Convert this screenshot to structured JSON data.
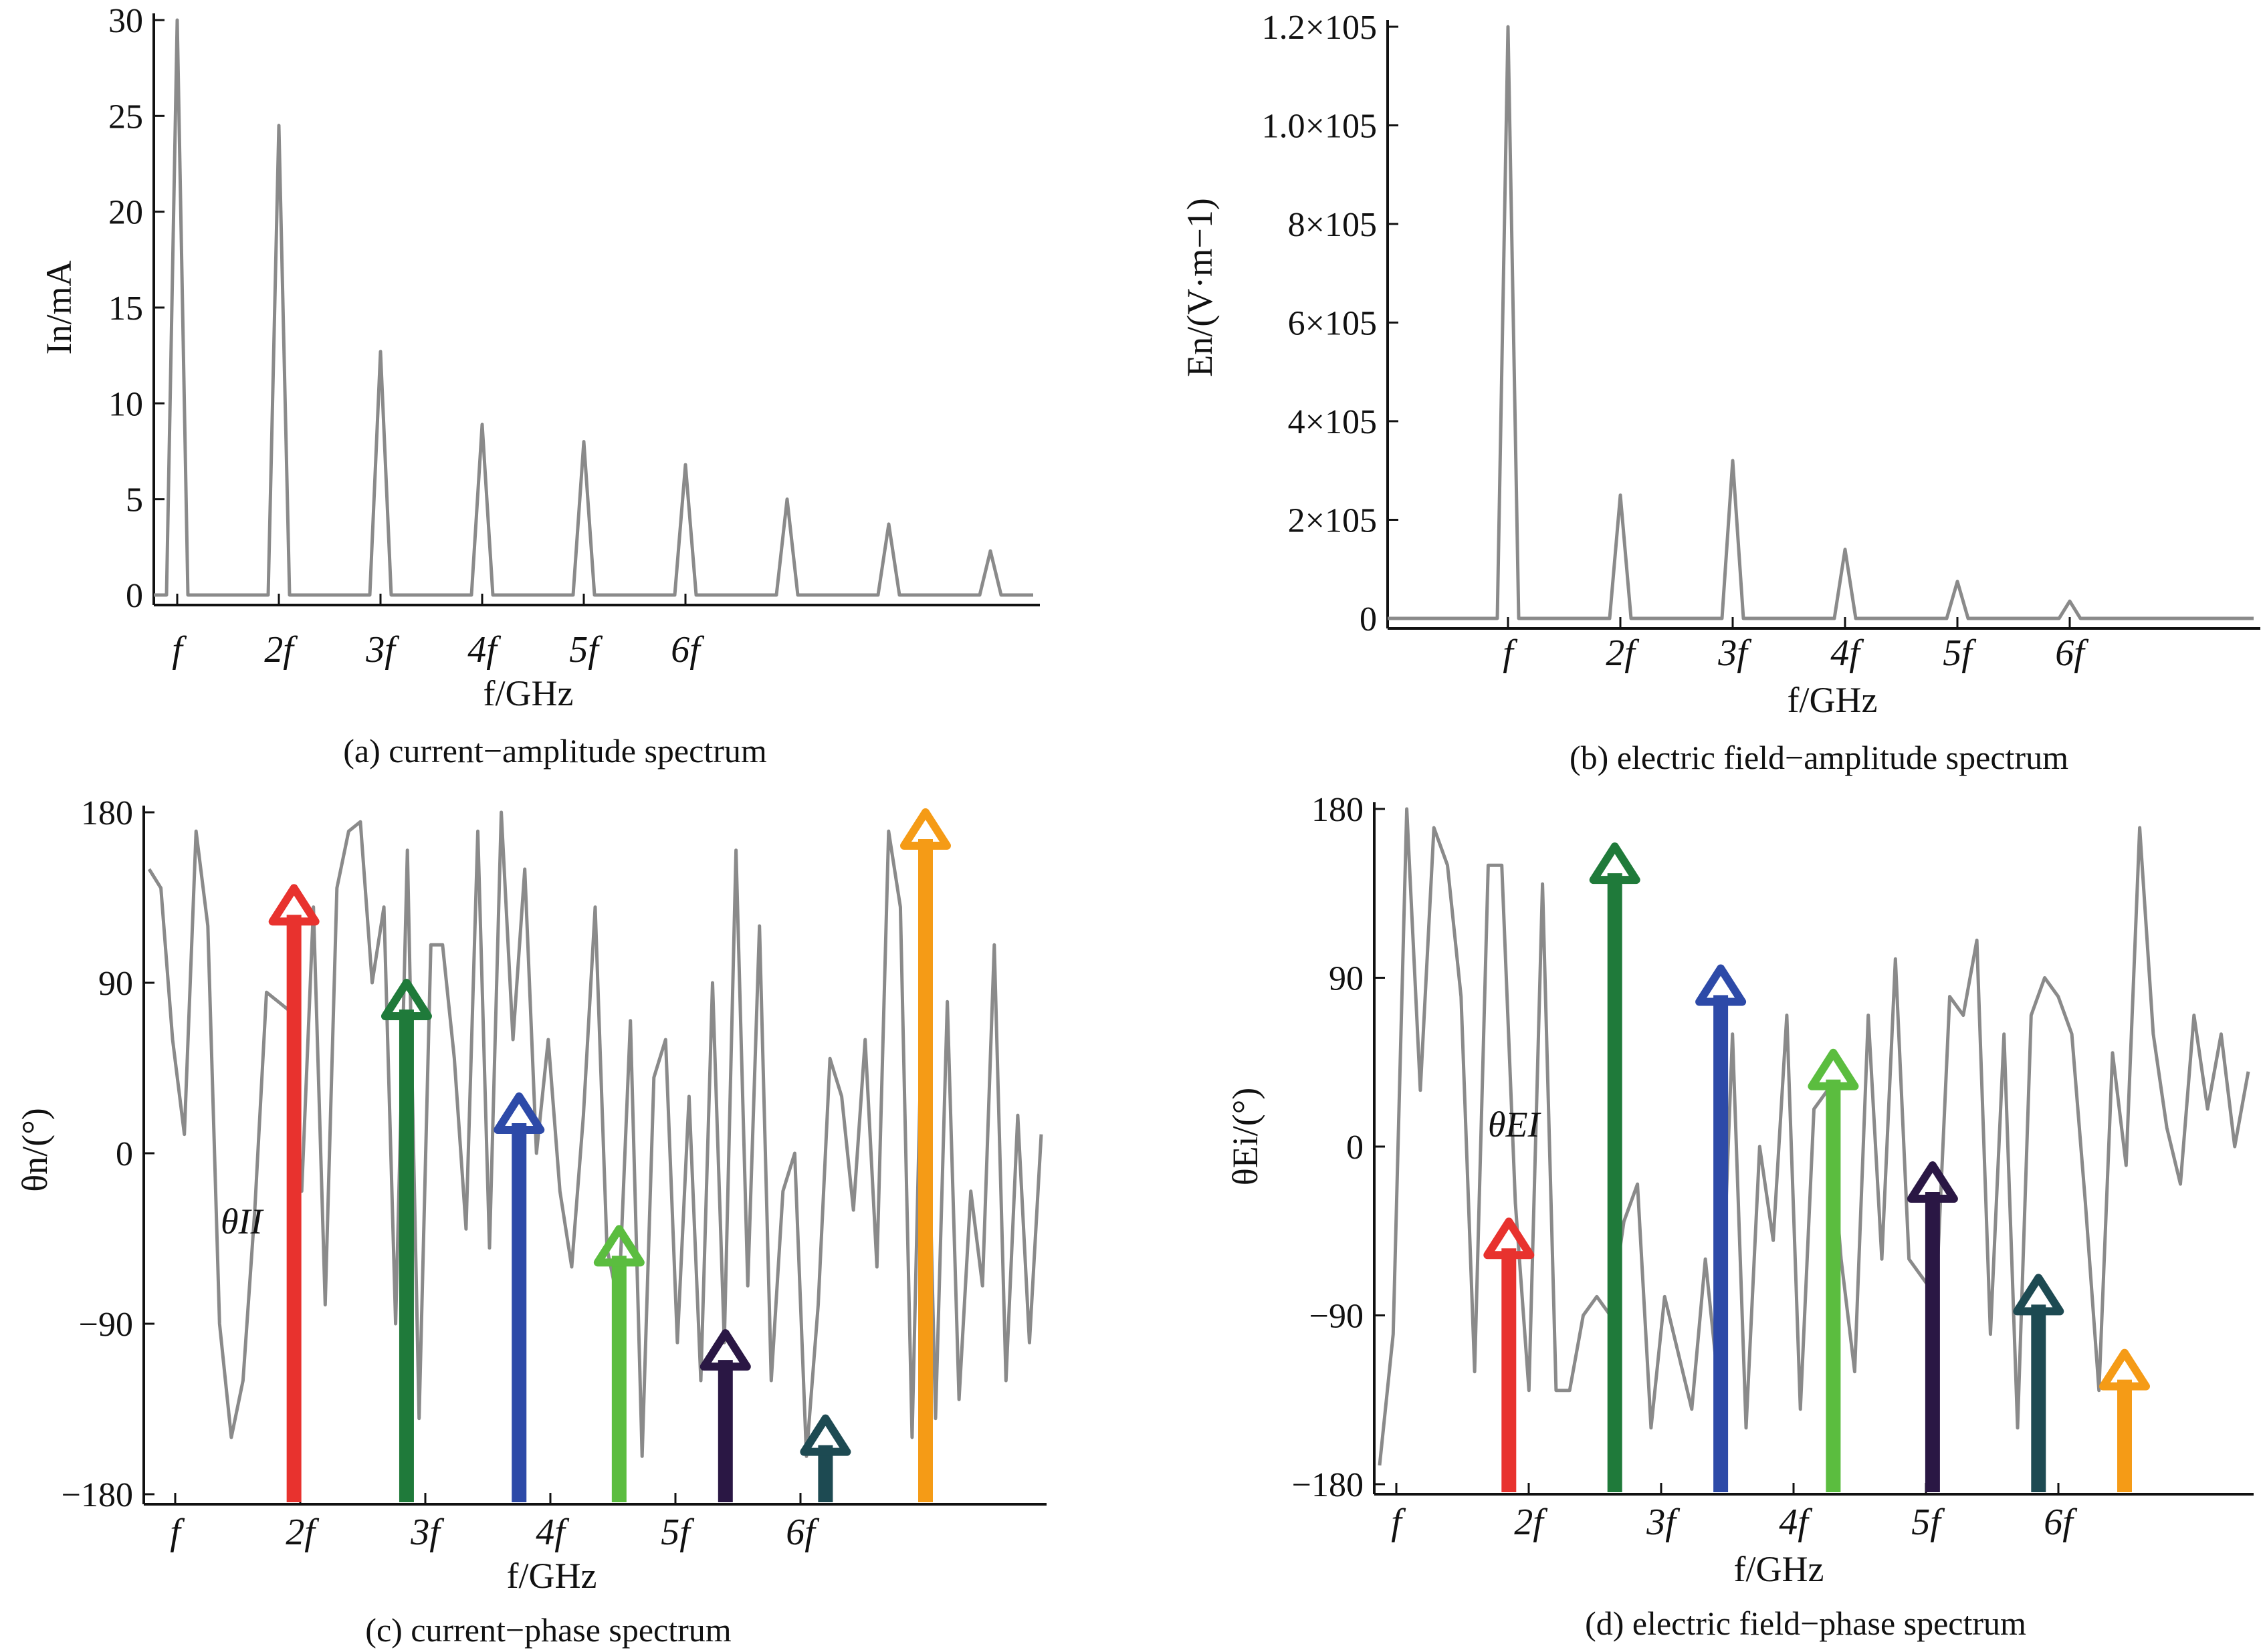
{
  "chart_data": [
    {
      "panel": "a",
      "type": "line",
      "caption": "(a) current−amplitude spectrum",
      "xlabel": "f/GHz",
      "ylabel": "In/mA",
      "ylim": [
        0,
        30
      ],
      "yticks": [
        "0",
        "5",
        "10",
        "15",
        "20",
        "25",
        "30"
      ],
      "xticks": [
        "f",
        "2f",
        "3f",
        "4f",
        "5f",
        "6f"
      ],
      "peaks": [
        {
          "harmonic": 1,
          "value": 30
        },
        {
          "harmonic": 2,
          "value": 24.5
        },
        {
          "harmonic": 3,
          "value": 12.7
        },
        {
          "harmonic": 4,
          "value": 8.9
        },
        {
          "harmonic": 5,
          "value": 8.0
        },
        {
          "harmonic": 6,
          "value": 6.8
        },
        {
          "harmonic": 7,
          "value": 5.0
        },
        {
          "harmonic": 8,
          "value": 3.7
        },
        {
          "harmonic": 9,
          "value": 2.3
        }
      ],
      "line_color": "#8a8a8a"
    },
    {
      "panel": "b",
      "type": "line",
      "caption": "(b) electric field−amplitude spectrum",
      "xlabel": "f/GHz",
      "ylabel": "En/(V·m−1)",
      "ylim": [
        0,
        120000
      ],
      "yticks": [
        "0",
        "2×105",
        "4×105",
        "6×105",
        "8×105",
        "1.0×105",
        "1.2×105"
      ],
      "xticks": [
        "f",
        "2f",
        "3f",
        "4f",
        "5f",
        "6f"
      ],
      "peaks": [
        {
          "harmonic": 1,
          "value": 120000
        },
        {
          "harmonic": 2,
          "value": 25000
        },
        {
          "harmonic": 3,
          "value": 32000
        },
        {
          "harmonic": 4,
          "value": 14000
        },
        {
          "harmonic": 5,
          "value": 7500
        },
        {
          "harmonic": 6,
          "value": 3500
        }
      ],
      "line_color": "#8a8a8a"
    },
    {
      "panel": "c",
      "type": "line",
      "caption": "(c) current−phase spectrum",
      "xlabel": "f/GHz",
      "ylabel": "θn/(°)",
      "annotation": "θII",
      "ylim": [
        -180,
        180
      ],
      "yticks": [
        "−180",
        "−90",
        "0",
        "90",
        "180"
      ],
      "xticks": [
        "f",
        "2f",
        "3f",
        "4f",
        "5f",
        "6f"
      ],
      "noise_phase": [
        150,
        140,
        60,
        10,
        170,
        120,
        -90,
        -150,
        -120,
        -30,
        85,
        80,
        75,
        -20,
        130,
        -80,
        140,
        170,
        175,
        90,
        130,
        -90,
        160,
        -140,
        110,
        110,
        50,
        -40,
        170,
        -50,
        180,
        60,
        150,
        0,
        60,
        -20,
        -60,
        20,
        130,
        -50,
        -80,
        70,
        -160,
        40,
        60,
        -100,
        30,
        -120,
        90,
        -100,
        160,
        -70,
        120,
        -120,
        -20,
        0,
        -160,
        -80,
        50,
        30,
        -30,
        60,
        -60,
        170,
        130,
        -150,
        120,
        -140,
        80,
        -130,
        -20,
        -70,
        110,
        -120,
        20,
        -100,
        10
      ],
      "arrows": [
        {
          "x_harmonic": 1.95,
          "value": 140,
          "color": "#e8322e"
        },
        {
          "x_harmonic": 2.85,
          "value": 90,
          "color": "#1f7a3a"
        },
        {
          "x_harmonic": 3.75,
          "value": 30,
          "color": "#2d4aa8"
        },
        {
          "x_harmonic": 4.55,
          "value": -40,
          "color": "#5bbd3f"
        },
        {
          "x_harmonic": 5.4,
          "value": -95,
          "color": "#2a1744"
        },
        {
          "x_harmonic": 6.2,
          "value": -140,
          "color": "#1d4a52"
        },
        {
          "x_harmonic": 7.0,
          "value": 180,
          "color": "#f59b16"
        }
      ],
      "line_color": "#8a8a8a"
    },
    {
      "panel": "d",
      "type": "line",
      "caption": "(d) electric field−phase spectrum",
      "xlabel": "f/GHz",
      "ylabel": "θEi/(°)",
      "annotation": "θEI",
      "ylim": [
        -180,
        180
      ],
      "yticks": [
        "−180",
        "−90",
        "0",
        "90",
        "180"
      ],
      "xticks": [
        "f",
        "2f",
        "3f",
        "4f",
        "5f",
        "6f"
      ],
      "noise_phase": [
        -170,
        -100,
        180,
        30,
        170,
        150,
        80,
        -120,
        150,
        150,
        -30,
        -130,
        140,
        -130,
        -130,
        -90,
        -80,
        -90,
        -40,
        -20,
        -150,
        -80,
        -110,
        -140,
        -60,
        -130,
        60,
        -150,
        0,
        -50,
        70,
        -140,
        20,
        30,
        -60,
        -120,
        70,
        -60,
        100,
        -60,
        -70,
        -80,
        80,
        70,
        110,
        -100,
        60,
        -150,
        70,
        90,
        80,
        60,
        -30,
        -130,
        50,
        -10,
        170,
        60,
        10,
        -20,
        70,
        20,
        60,
        0,
        40
      ],
      "arrows": [
        {
          "x_harmonic": 1.85,
          "value": -40,
          "color": "#e8322e"
        },
        {
          "x_harmonic": 2.65,
          "value": 160,
          "color": "#1f7a3a"
        },
        {
          "x_harmonic": 3.45,
          "value": 95,
          "color": "#2d4aa8"
        },
        {
          "x_harmonic": 4.3,
          "value": 50,
          "color": "#5bbd3f"
        },
        {
          "x_harmonic": 5.05,
          "value": -10,
          "color": "#2a1744"
        },
        {
          "x_harmonic": 5.85,
          "value": -70,
          "color": "#1d4a52"
        },
        {
          "x_harmonic": 6.5,
          "value": -110,
          "color": "#f59b16"
        }
      ],
      "line_color": "#8a8a8a"
    }
  ]
}
